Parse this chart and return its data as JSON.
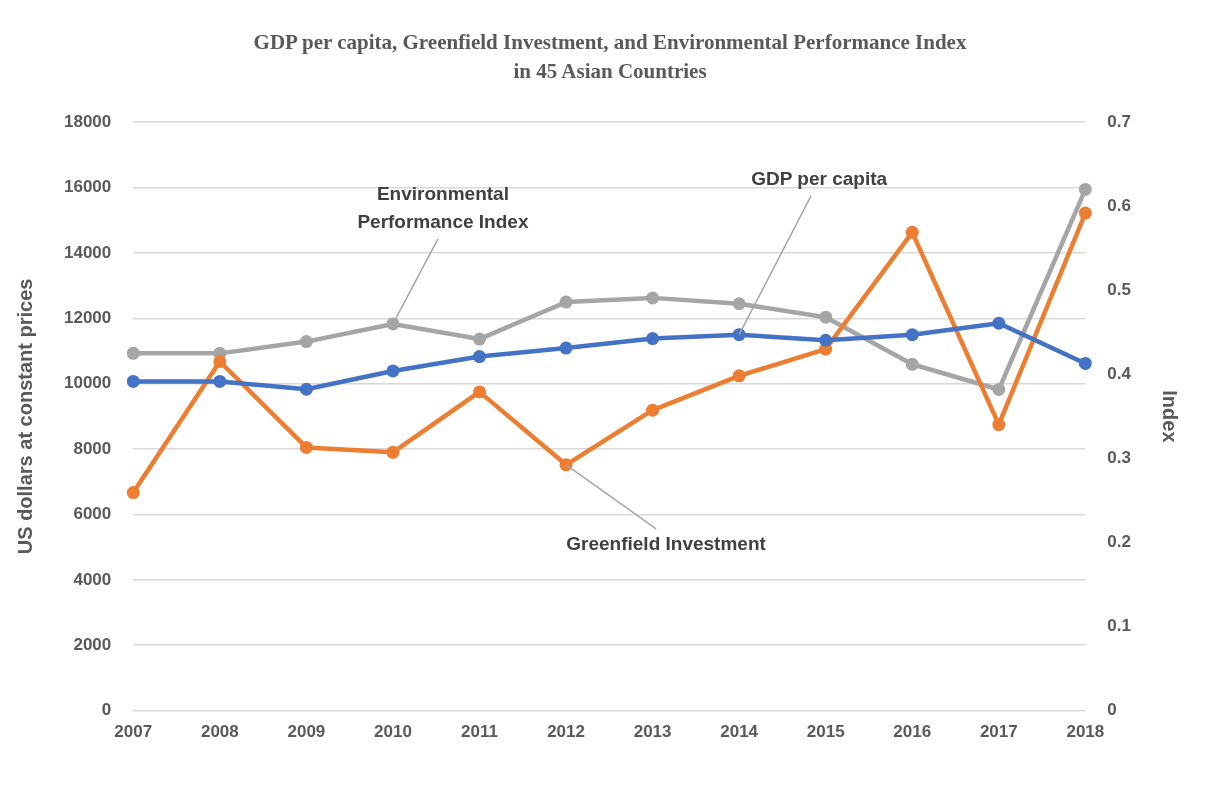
{
  "chart_data": {
    "type": "line",
    "title": "GDP per capita, Greenfield Investment, and Environmental Performance Index in 45 Asian Countries",
    "ylabel": "US dollars at constant prices",
    "y2label": "Index",
    "categories": [
      "2007",
      "2008",
      "2009",
      "2010",
      "2011",
      "2012",
      "2013",
      "2014",
      "2015",
      "2016",
      "2017",
      "2018"
    ],
    "series": [
      {
        "name": "GDP per capita",
        "color": "#4472c4",
        "values": [
          10070,
          10070,
          9830,
          10390,
          10830,
          11090,
          11380,
          11500,
          11330,
          11500,
          11850,
          10620
        ]
      },
      {
        "name": "Greenfield Investment",
        "color": "#ed7d31",
        "values": [
          6670,
          10680,
          8050,
          7900,
          9750,
          7520,
          9190,
          10240,
          11060,
          14630,
          8750,
          15220
        ]
      },
      {
        "name": "Environmental Performance Index",
        "color": "#a5a5a5",
        "axis": "y2",
        "values": [
          0.425,
          0.425,
          0.439,
          0.46,
          0.442,
          0.486,
          0.491,
          0.484,
          0.468,
          0.412,
          0.382,
          0.62
        ]
      }
    ],
    "ylim": [
      0,
      18000
    ],
    "yticks": [
      0,
      2000,
      4000,
      6000,
      8000,
      10000,
      12000,
      14000,
      16000,
      18000
    ],
    "y2lim": [
      0,
      0.7
    ],
    "y2ticks": [
      0,
      0.1,
      0.2,
      0.3,
      0.4,
      0.5,
      0.6,
      0.7
    ],
    "grid": "y",
    "legend": false,
    "marker": "circle",
    "line_style": "solid"
  }
}
